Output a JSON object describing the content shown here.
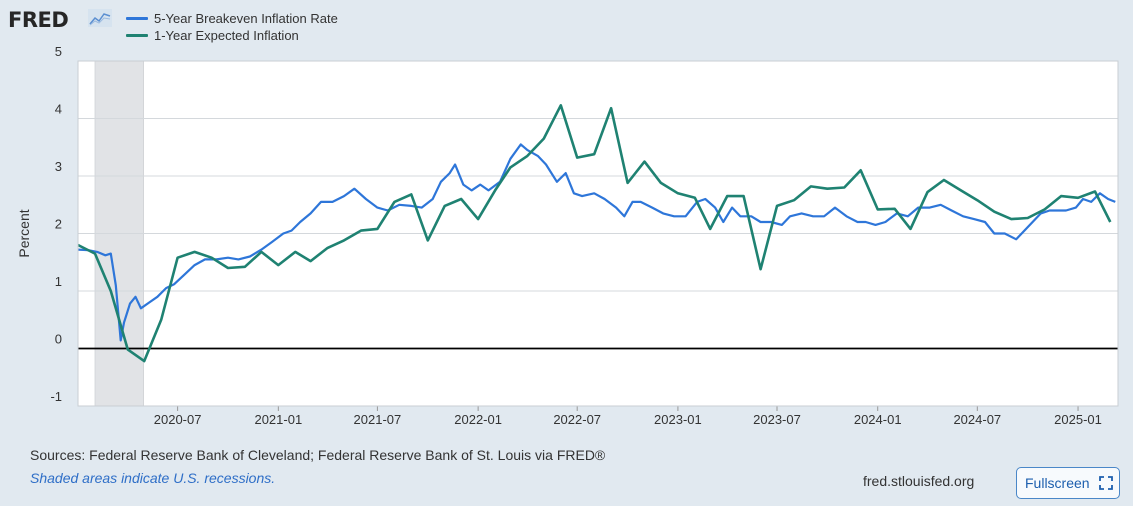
{
  "brand": {
    "logo_text": "FRED"
  },
  "legend": [
    {
      "label": "5-Year Breakeven Inflation Rate",
      "color": "#2e76d9"
    },
    {
      "label": "1-Year Expected Inflation",
      "color": "#1f8272"
    }
  ],
  "footer": {
    "sources": "Sources: Federal Reserve Bank of Cleveland; Federal Reserve Bank of St. Louis via FRED®",
    "recession_note": "Shaded areas indicate U.S. recessions.",
    "url": "fred.stlouisfed.org",
    "fullscreen_label": "Fullscreen"
  },
  "chart_data": {
    "type": "line",
    "ylabel": "Percent",
    "xlabel": "",
    "ylim": [
      -1,
      5
    ],
    "yticks": [
      -1,
      0,
      1,
      2,
      3,
      4,
      5
    ],
    "xlim": [
      "2020-01-01",
      "2025-03-15"
    ],
    "xticks": [
      "2020-07",
      "2021-01",
      "2021-07",
      "2022-01",
      "2022-07",
      "2023-01",
      "2023-07",
      "2024-01",
      "2024-07",
      "2025-01"
    ],
    "grid": true,
    "zero_line": true,
    "recession": {
      "start": "2020-02-01",
      "end": "2020-04-30",
      "color": "#e1e3e6"
    },
    "series": [
      {
        "name": "5-Year Breakeven Inflation Rate",
        "color": "#2e76d9",
        "points": [
          [
            "2020-01-01",
            1.72
          ],
          [
            "2020-01-20",
            1.71
          ],
          [
            "2020-02-05",
            1.68
          ],
          [
            "2020-02-20",
            1.62
          ],
          [
            "2020-03-01",
            1.65
          ],
          [
            "2020-03-10",
            1.1
          ],
          [
            "2020-03-19",
            0.14
          ],
          [
            "2020-03-25",
            0.45
          ],
          [
            "2020-04-05",
            0.78
          ],
          [
            "2020-04-15",
            0.9
          ],
          [
            "2020-04-25",
            0.7
          ],
          [
            "2020-05-10",
            0.8
          ],
          [
            "2020-05-25",
            0.9
          ],
          [
            "2020-06-10",
            1.05
          ],
          [
            "2020-06-25",
            1.12
          ],
          [
            "2020-07-15",
            1.3
          ],
          [
            "2020-08-01",
            1.45
          ],
          [
            "2020-08-20",
            1.55
          ],
          [
            "2020-09-10",
            1.55
          ],
          [
            "2020-10-01",
            1.58
          ],
          [
            "2020-10-20",
            1.55
          ],
          [
            "2020-11-10",
            1.6
          ],
          [
            "2020-12-01",
            1.72
          ],
          [
            "2020-12-20",
            1.85
          ],
          [
            "2021-01-10",
            2.0
          ],
          [
            "2021-01-25",
            2.05
          ],
          [
            "2021-02-10",
            2.2
          ],
          [
            "2021-03-01",
            2.35
          ],
          [
            "2021-03-20",
            2.55
          ],
          [
            "2021-04-10",
            2.55
          ],
          [
            "2021-05-01",
            2.65
          ],
          [
            "2021-05-20",
            2.78
          ],
          [
            "2021-06-10",
            2.6
          ],
          [
            "2021-07-01",
            2.45
          ],
          [
            "2021-07-20",
            2.4
          ],
          [
            "2021-08-10",
            2.5
          ],
          [
            "2021-09-01",
            2.48
          ],
          [
            "2021-09-20",
            2.45
          ],
          [
            "2021-10-10",
            2.6
          ],
          [
            "2021-10-25",
            2.9
          ],
          [
            "2021-11-10",
            3.05
          ],
          [
            "2021-11-20",
            3.2
          ],
          [
            "2021-12-05",
            2.85
          ],
          [
            "2021-12-20",
            2.75
          ],
          [
            "2022-01-05",
            2.85
          ],
          [
            "2022-01-20",
            2.75
          ],
          [
            "2022-02-10",
            2.9
          ],
          [
            "2022-03-01",
            3.3
          ],
          [
            "2022-03-20",
            3.55
          ],
          [
            "2022-04-01",
            3.45
          ],
          [
            "2022-04-20",
            3.35
          ],
          [
            "2022-05-05",
            3.2
          ],
          [
            "2022-05-25",
            2.9
          ],
          [
            "2022-06-10",
            3.05
          ],
          [
            "2022-06-25",
            2.7
          ],
          [
            "2022-07-10",
            2.65
          ],
          [
            "2022-08-01",
            2.7
          ],
          [
            "2022-08-20",
            2.6
          ],
          [
            "2022-09-10",
            2.45
          ],
          [
            "2022-09-25",
            2.3
          ],
          [
            "2022-10-10",
            2.55
          ],
          [
            "2022-10-25",
            2.55
          ],
          [
            "2022-11-15",
            2.45
          ],
          [
            "2022-12-05",
            2.35
          ],
          [
            "2022-12-25",
            2.3
          ],
          [
            "2023-01-15",
            2.3
          ],
          [
            "2023-02-05",
            2.55
          ],
          [
            "2023-02-20",
            2.6
          ],
          [
            "2023-03-10",
            2.45
          ],
          [
            "2023-03-25",
            2.2
          ],
          [
            "2023-04-10",
            2.45
          ],
          [
            "2023-04-25",
            2.3
          ],
          [
            "2023-05-15",
            2.3
          ],
          [
            "2023-06-01",
            2.2
          ],
          [
            "2023-06-20",
            2.2
          ],
          [
            "2023-07-10",
            2.15
          ],
          [
            "2023-07-25",
            2.3
          ],
          [
            "2023-08-15",
            2.35
          ],
          [
            "2023-09-05",
            2.3
          ],
          [
            "2023-09-25",
            2.3
          ],
          [
            "2023-10-15",
            2.45
          ],
          [
            "2023-11-05",
            2.3
          ],
          [
            "2023-11-25",
            2.2
          ],
          [
            "2023-12-10",
            2.2
          ],
          [
            "2023-12-28",
            2.15
          ],
          [
            "2024-01-15",
            2.2
          ],
          [
            "2024-02-05",
            2.35
          ],
          [
            "2024-02-25",
            2.3
          ],
          [
            "2024-03-15",
            2.45
          ],
          [
            "2024-04-05",
            2.45
          ],
          [
            "2024-04-25",
            2.5
          ],
          [
            "2024-05-15",
            2.4
          ],
          [
            "2024-06-05",
            2.3
          ],
          [
            "2024-06-25",
            2.25
          ],
          [
            "2024-07-15",
            2.2
          ],
          [
            "2024-08-01",
            2.0
          ],
          [
            "2024-08-20",
            2.0
          ],
          [
            "2024-09-10",
            1.9
          ],
          [
            "2024-09-25",
            2.05
          ],
          [
            "2024-10-10",
            2.2
          ],
          [
            "2024-10-25",
            2.35
          ],
          [
            "2024-11-10",
            2.4
          ],
          [
            "2024-11-25",
            2.4
          ],
          [
            "2024-12-10",
            2.4
          ],
          [
            "2024-12-28",
            2.45
          ],
          [
            "2025-01-10",
            2.6
          ],
          [
            "2025-01-25",
            2.55
          ],
          [
            "2025-02-10",
            2.7
          ],
          [
            "2025-02-25",
            2.6
          ],
          [
            "2025-03-10",
            2.55
          ]
        ]
      },
      {
        "name": "1-Year Expected Inflation",
        "color": "#1f8272",
        "points": [
          [
            "2020-01-01",
            1.8
          ],
          [
            "2020-02-01",
            1.65
          ],
          [
            "2020-03-01",
            1.0
          ],
          [
            "2020-04-01",
            -0.02
          ],
          [
            "2020-05-01",
            -0.22
          ],
          [
            "2020-06-01",
            0.5
          ],
          [
            "2020-07-01",
            1.58
          ],
          [
            "2020-08-01",
            1.68
          ],
          [
            "2020-09-01",
            1.58
          ],
          [
            "2020-10-01",
            1.4
          ],
          [
            "2020-11-01",
            1.42
          ],
          [
            "2020-12-01",
            1.68
          ],
          [
            "2021-01-01",
            1.45
          ],
          [
            "2021-02-01",
            1.68
          ],
          [
            "2021-03-01",
            1.52
          ],
          [
            "2021-04-01",
            1.75
          ],
          [
            "2021-05-01",
            1.88
          ],
          [
            "2021-06-01",
            2.05
          ],
          [
            "2021-07-01",
            2.08
          ],
          [
            "2021-08-01",
            2.55
          ],
          [
            "2021-09-01",
            2.68
          ],
          [
            "2021-10-01",
            1.88
          ],
          [
            "2021-11-01",
            2.48
          ],
          [
            "2021-12-01",
            2.6
          ],
          [
            "2022-01-01",
            2.25
          ],
          [
            "2022-02-01",
            2.75
          ],
          [
            "2022-03-01",
            3.15
          ],
          [
            "2022-04-01",
            3.35
          ],
          [
            "2022-05-01",
            3.65
          ],
          [
            "2022-06-01",
            4.23
          ],
          [
            "2022-07-01",
            3.32
          ],
          [
            "2022-08-01",
            3.38
          ],
          [
            "2022-09-01",
            4.18
          ],
          [
            "2022-10-01",
            2.88
          ],
          [
            "2022-11-01",
            3.25
          ],
          [
            "2022-12-01",
            2.88
          ],
          [
            "2023-01-01",
            2.7
          ],
          [
            "2023-02-01",
            2.62
          ],
          [
            "2023-03-01",
            2.08
          ],
          [
            "2023-04-01",
            2.65
          ],
          [
            "2023-05-01",
            2.65
          ],
          [
            "2023-06-01",
            1.38
          ],
          [
            "2023-07-01",
            2.48
          ],
          [
            "2023-08-01",
            2.58
          ],
          [
            "2023-09-01",
            2.82
          ],
          [
            "2023-10-01",
            2.78
          ],
          [
            "2023-11-01",
            2.8
          ],
          [
            "2023-12-01",
            3.1
          ],
          [
            "2024-01-01",
            2.42
          ],
          [
            "2024-02-01",
            2.43
          ],
          [
            "2024-03-01",
            2.08
          ],
          [
            "2024-04-01",
            2.72
          ],
          [
            "2024-05-01",
            2.93
          ],
          [
            "2024-06-01",
            2.75
          ],
          [
            "2024-07-01",
            2.58
          ],
          [
            "2024-08-01",
            2.38
          ],
          [
            "2024-09-01",
            2.25
          ],
          [
            "2024-10-01",
            2.27
          ],
          [
            "2024-11-01",
            2.42
          ],
          [
            "2024-12-01",
            2.65
          ],
          [
            "2025-01-01",
            2.62
          ],
          [
            "2025-02-01",
            2.73
          ],
          [
            "2025-03-01",
            2.2
          ]
        ]
      }
    ]
  }
}
